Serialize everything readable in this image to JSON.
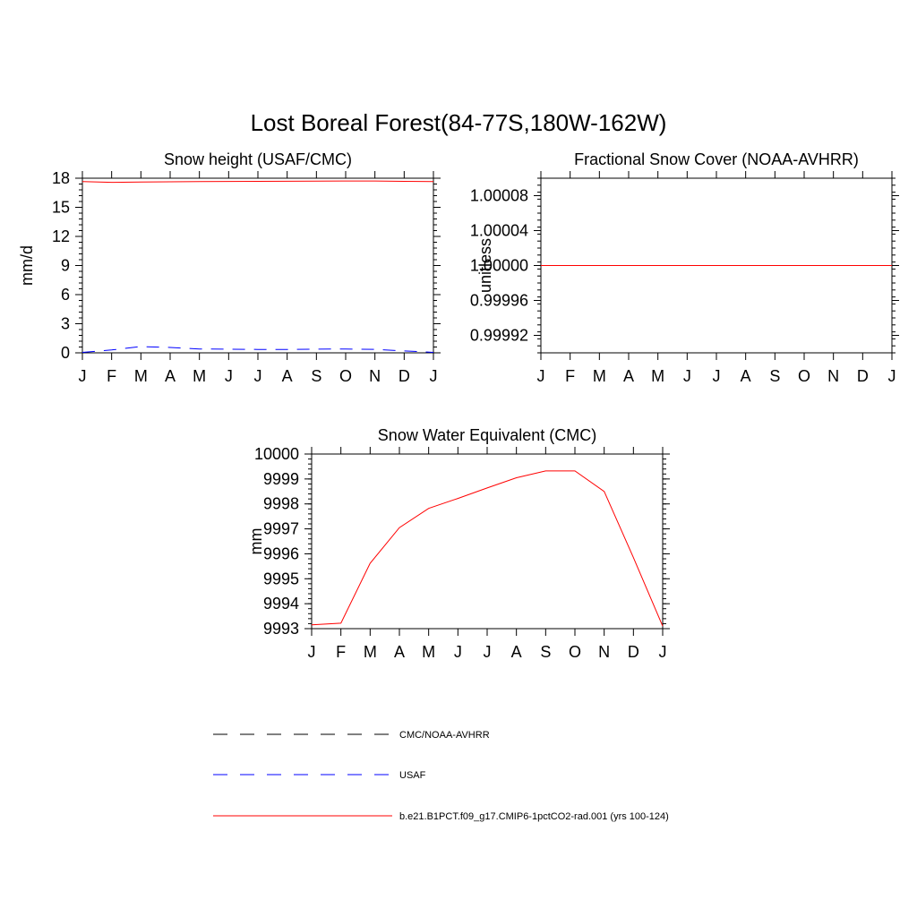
{
  "title": "Lost Boreal Forest(84-77S,180W-162W)",
  "colors": {
    "model": "#ff0000",
    "usaf": "#0000ff",
    "cmc": "#000000"
  },
  "chart_data": [
    {
      "type": "line",
      "title": "Snow height (USAF/CMC)",
      "xlabel": "",
      "ylabel": "mm/d",
      "categories": [
        "J",
        "F",
        "M",
        "A",
        "M",
        "J",
        "J",
        "A",
        "S",
        "O",
        "N",
        "D",
        "J"
      ],
      "ylim": [
        0,
        18
      ],
      "yticks": [
        0,
        3,
        6,
        9,
        12,
        15,
        18
      ],
      "ytick_labels": [
        "0",
        "3",
        "6",
        "9",
        "12",
        "15",
        "18"
      ],
      "series": [
        {
          "name": "b.e21.B1PCT.f09_g17.CMIP6-1pctCO2-rad.001 (yrs 100-124)",
          "color": "#ff0000",
          "dash": "solid",
          "values": [
            17.65,
            17.58,
            17.6,
            17.63,
            17.65,
            17.67,
            17.68,
            17.69,
            17.7,
            17.71,
            17.71,
            17.68,
            17.65
          ]
        },
        {
          "name": "USAF",
          "color": "#0000ff",
          "dash": "dashed",
          "values": [
            0.05,
            0.3,
            0.65,
            0.55,
            0.4,
            0.38,
            0.35,
            0.35,
            0.38,
            0.4,
            0.35,
            0.2,
            0.05
          ]
        }
      ]
    },
    {
      "type": "line",
      "title": "Fractional Snow Cover (NOAA-AVHRR)",
      "xlabel": "",
      "ylabel": "unitless",
      "categories": [
        "J",
        "F",
        "M",
        "A",
        "M",
        "J",
        "J",
        "A",
        "S",
        "O",
        "N",
        "D",
        "J"
      ],
      "ylim": [
        0.9999,
        1.0001
      ],
      "yticks": [
        0.99992,
        0.99996,
        1.0,
        1.00004,
        1.00008
      ],
      "ytick_labels": [
        "0.99992",
        "0.99996",
        "1.00000",
        "1.00004",
        "1.00008"
      ],
      "series": [
        {
          "name": "b.e21.B1PCT.f09_g17.CMIP6-1pctCO2-rad.001 (yrs 100-124)",
          "color": "#ff0000",
          "dash": "solid",
          "values": [
            1,
            1,
            1,
            1,
            1,
            1,
            1,
            1,
            1,
            1,
            1,
            1,
            1
          ]
        }
      ]
    },
    {
      "type": "line",
      "title": "Snow Water Equivalent (CMC)",
      "xlabel": "",
      "ylabel": "mm",
      "categories": [
        "J",
        "F",
        "M",
        "A",
        "M",
        "J",
        "J",
        "A",
        "S",
        "O",
        "N",
        "D",
        "J"
      ],
      "ylim": [
        9993,
        10000
      ],
      "yticks": [
        9993,
        9994,
        9995,
        9996,
        9997,
        9998,
        9999,
        10000
      ],
      "ytick_labels": [
        "9993",
        "9994",
        "9995",
        "9996",
        "9997",
        "9998",
        "9999",
        "10000"
      ],
      "series": [
        {
          "name": "b.e21.B1PCT.f09_g17.CMIP6-1pctCO2-rad.001 (yrs 100-124)",
          "color": "#ff0000",
          "dash": "solid",
          "values": [
            9993.15,
            9993.22,
            9995.62,
            9997.05,
            9997.82,
            9998.22,
            9998.64,
            9999.05,
            9999.32,
            9999.32,
            9998.5,
            9995.85,
            9993.1
          ]
        }
      ]
    }
  ],
  "legend": {
    "placement": "bottom-center",
    "entries": [
      {
        "label": "CMC/NOAA-AVHRR",
        "color": "#000000",
        "dash": "dashed"
      },
      {
        "label": "USAF",
        "color": "#0000ff",
        "dash": "dashed"
      },
      {
        "label": "b.e21.B1PCT.f09_g17.CMIP6-1pctCO2-rad.001 (yrs 100-124)",
        "color": "#ff0000",
        "dash": "solid"
      }
    ]
  }
}
